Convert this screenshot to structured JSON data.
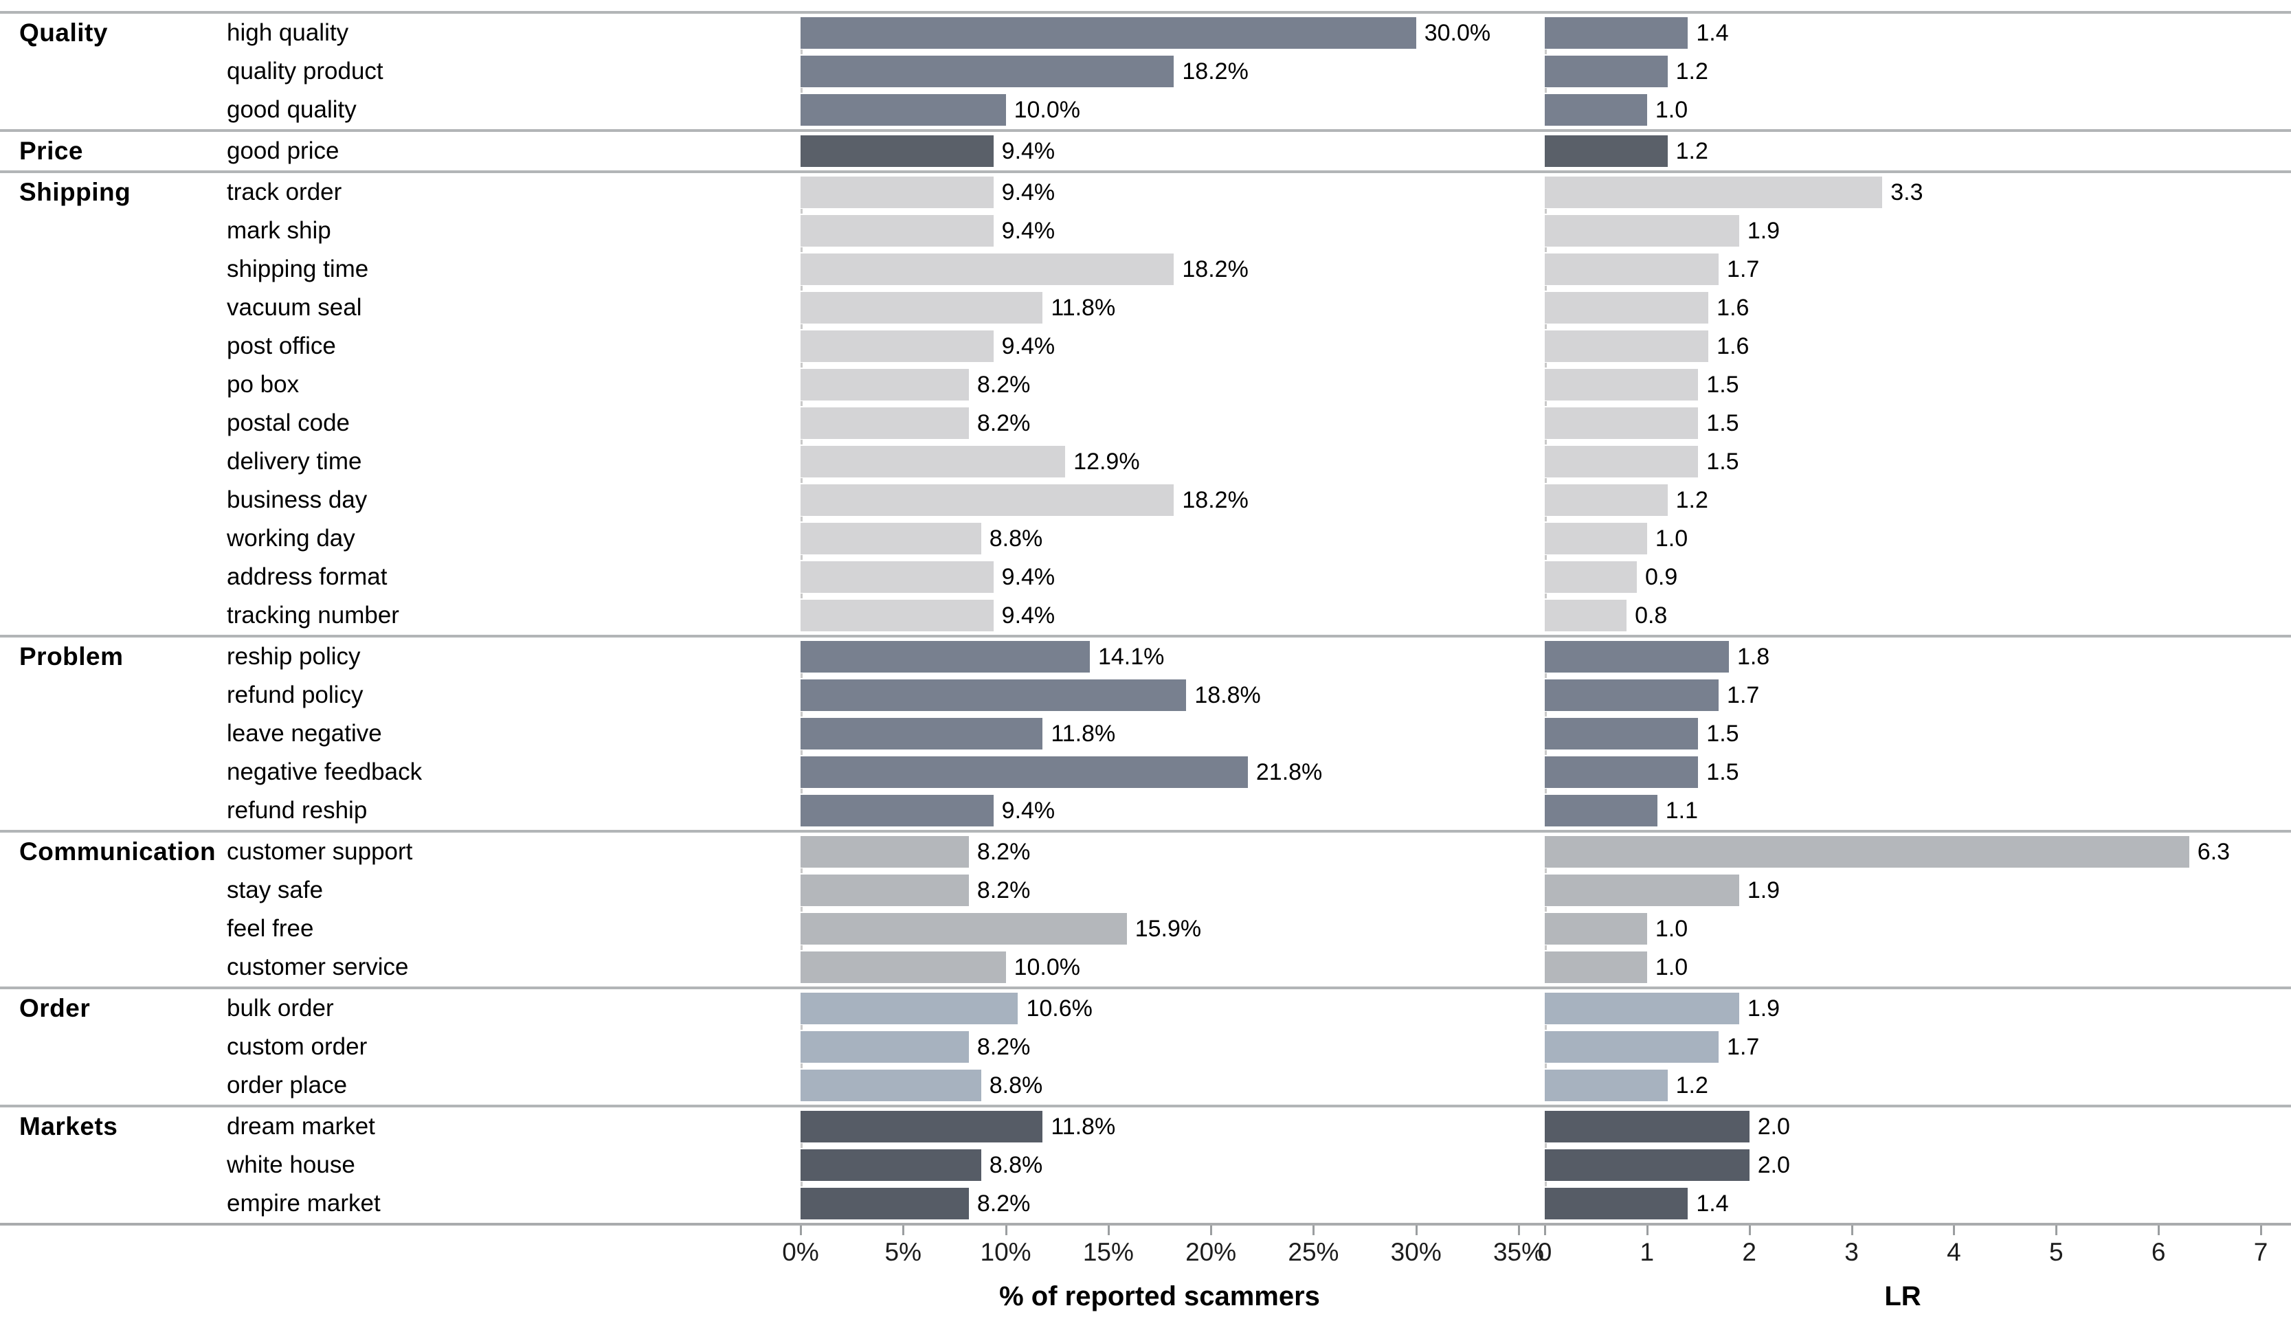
{
  "chart_data": {
    "type": "bar",
    "layout": "dual-panel horizontal bars, grouped rows",
    "panels": [
      {
        "xlabel": "% of reported scammers",
        "xlim": [
          0,
          35
        ],
        "ticks": [
          "0%",
          "5%",
          "10%",
          "15%",
          "20%",
          "25%",
          "30%",
          "35%"
        ]
      },
      {
        "xlabel": "LR",
        "xlim": [
          0,
          7
        ],
        "ticks": [
          "0",
          "1",
          "2",
          "3",
          "4",
          "5",
          "6",
          "7"
        ]
      }
    ],
    "groups": [
      {
        "name": "Quality",
        "color": "#78808F",
        "items": [
          {
            "label": "high quality",
            "pct": 30.0,
            "pct_label": "30.0%",
            "lr": 1.4,
            "lr_label": "1.4"
          },
          {
            "label": "quality product",
            "pct": 18.2,
            "pct_label": "18.2%",
            "lr": 1.2,
            "lr_label": "1.2"
          },
          {
            "label": "good quality",
            "pct": 10.0,
            "pct_label": "10.0%",
            "lr": 1.0,
            "lr_label": "1.0"
          }
        ]
      },
      {
        "name": "Price",
        "color": "#5A6069",
        "items": [
          {
            "label": "good price",
            "pct": 9.4,
            "pct_label": "9.4%",
            "lr": 1.2,
            "lr_label": "1.2"
          }
        ]
      },
      {
        "name": "Shipping",
        "color": "#D4D4D6",
        "items": [
          {
            "label": "track order",
            "pct": 9.4,
            "pct_label": "9.4%",
            "lr": 3.3,
            "lr_label": "3.3"
          },
          {
            "label": "mark ship",
            "pct": 9.4,
            "pct_label": "9.4%",
            "lr": 1.9,
            "lr_label": "1.9"
          },
          {
            "label": "shipping time",
            "pct": 18.2,
            "pct_label": "18.2%",
            "lr": 1.7,
            "lr_label": "1.7"
          },
          {
            "label": "vacuum seal",
            "pct": 11.8,
            "pct_label": "11.8%",
            "lr": 1.6,
            "lr_label": "1.6"
          },
          {
            "label": "post office",
            "pct": 9.4,
            "pct_label": "9.4%",
            "lr": 1.6,
            "lr_label": "1.6"
          },
          {
            "label": "po box",
            "pct": 8.2,
            "pct_label": "8.2%",
            "lr": 1.5,
            "lr_label": "1.5"
          },
          {
            "label": "postal code",
            "pct": 8.2,
            "pct_label": "8.2%",
            "lr": 1.5,
            "lr_label": "1.5"
          },
          {
            "label": "delivery time",
            "pct": 12.9,
            "pct_label": "12.9%",
            "lr": 1.5,
            "lr_label": "1.5"
          },
          {
            "label": "business day",
            "pct": 18.2,
            "pct_label": "18.2%",
            "lr": 1.2,
            "lr_label": "1.2"
          },
          {
            "label": "working day",
            "pct": 8.8,
            "pct_label": "8.8%",
            "lr": 1.0,
            "lr_label": "1.0"
          },
          {
            "label": "address format",
            "pct": 9.4,
            "pct_label": "9.4%",
            "lr": 0.9,
            "lr_label": "0.9"
          },
          {
            "label": "tracking number",
            "pct": 9.4,
            "pct_label": "9.4%",
            "lr": 0.8,
            "lr_label": "0.8"
          }
        ]
      },
      {
        "name": "Problem",
        "color": "#78808F",
        "items": [
          {
            "label": "reship policy",
            "pct": 14.1,
            "pct_label": "14.1%",
            "lr": 1.8,
            "lr_label": "1.8"
          },
          {
            "label": "refund policy",
            "pct": 18.8,
            "pct_label": "18.8%",
            "lr": 1.7,
            "lr_label": "1.7"
          },
          {
            "label": "leave negative",
            "pct": 11.8,
            "pct_label": "11.8%",
            "lr": 1.5,
            "lr_label": "1.5"
          },
          {
            "label": "negative feedback",
            "pct": 21.8,
            "pct_label": "21.8%",
            "lr": 1.5,
            "lr_label": "1.5"
          },
          {
            "label": "refund reship",
            "pct": 9.4,
            "pct_label": "9.4%",
            "lr": 1.1,
            "lr_label": "1.1"
          }
        ]
      },
      {
        "name": "Communication",
        "color": "#B4B7BB",
        "items": [
          {
            "label": "customer support",
            "pct": 8.2,
            "pct_label": "8.2%",
            "lr": 6.3,
            "lr_label": "6.3"
          },
          {
            "label": "stay safe",
            "pct": 8.2,
            "pct_label": "8.2%",
            "lr": 1.9,
            "lr_label": "1.9"
          },
          {
            "label": "feel free",
            "pct": 15.9,
            "pct_label": "15.9%",
            "lr": 1.0,
            "lr_label": "1.0"
          },
          {
            "label": "customer service",
            "pct": 10.0,
            "pct_label": "10.0%",
            "lr": 1.0,
            "lr_label": "1.0"
          }
        ]
      },
      {
        "name": "Order",
        "color": "#A7B2BF",
        "items": [
          {
            "label": "bulk order",
            "pct": 10.6,
            "pct_label": "10.6%",
            "lr": 1.9,
            "lr_label": "1.9"
          },
          {
            "label": "custom order",
            "pct": 8.2,
            "pct_label": "8.2%",
            "lr": 1.7,
            "lr_label": "1.7"
          },
          {
            "label": "order place",
            "pct": 8.8,
            "pct_label": "8.8%",
            "lr": 1.2,
            "lr_label": "1.2"
          }
        ]
      },
      {
        "name": "Markets",
        "color": "#565C66",
        "items": [
          {
            "label": "dream market",
            "pct": 11.8,
            "pct_label": "11.8%",
            "lr": 2.0,
            "lr_label": "2.0"
          },
          {
            "label": "white house",
            "pct": 8.8,
            "pct_label": "8.8%",
            "lr": 2.0,
            "lr_label": "2.0"
          },
          {
            "label": "empire market",
            "pct": 8.2,
            "pct_label": "8.2%",
            "lr": 1.4,
            "lr_label": "1.4"
          }
        ]
      }
    ]
  }
}
